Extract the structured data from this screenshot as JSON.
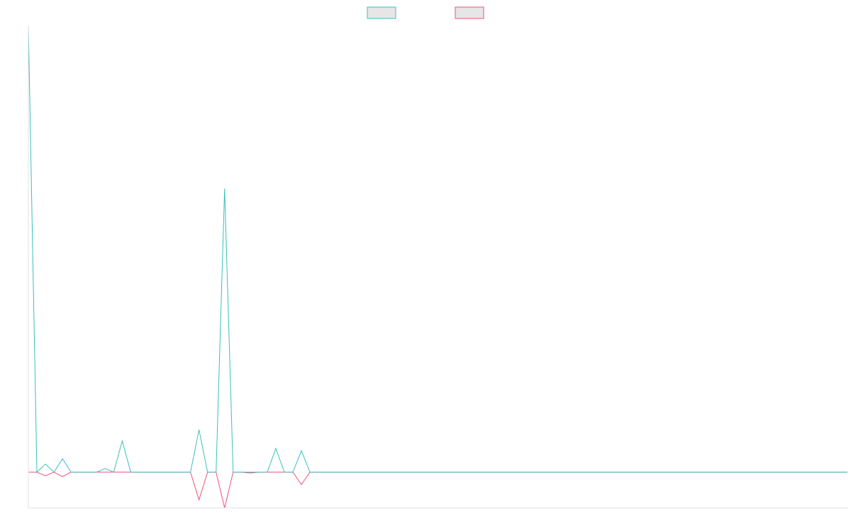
{
  "chart_data": {
    "type": "line",
    "title": "",
    "xlabel": "",
    "ylabel": "",
    "grid": false,
    "legend_position": "top-center",
    "x": [
      0,
      1,
      2,
      3,
      4,
      5,
      6,
      7,
      8,
      9,
      10,
      11,
      12,
      13,
      14,
      15,
      16,
      17,
      18,
      19,
      20,
      21,
      22,
      23,
      24,
      25,
      26,
      27,
      28,
      29,
      30,
      31,
      32,
      33,
      34,
      35,
      36,
      37,
      38,
      39,
      40,
      41,
      42,
      43,
      44,
      45,
      46,
      47,
      48,
      49,
      50,
      51,
      52,
      53,
      54,
      55,
      56,
      57,
      58,
      59,
      60,
      61,
      62,
      63,
      64,
      65,
      66,
      67,
      68,
      69,
      70,
      71,
      72,
      73,
      74,
      75,
      76,
      77,
      78,
      79,
      80,
      81,
      82,
      83,
      84,
      85,
      86,
      87,
      88,
      89,
      90,
      91,
      92,
      93,
      94,
      95,
      96
    ],
    "ylim": [
      -0.08,
      1.0
    ],
    "series": [
      {
        "name": "",
        "color": "#3bbfbf",
        "values": [
          1.0,
          0,
          0.018,
          0,
          0.03,
          0,
          0,
          0,
          0,
          0.008,
          0,
          0.07,
          0,
          0,
          0,
          0,
          0,
          0,
          0,
          0,
          0.095,
          0,
          0,
          0.635,
          0,
          0,
          0,
          0,
          0,
          0.053,
          0,
          0,
          0.048,
          0,
          0,
          0,
          0,
          0,
          0,
          0,
          0,
          0,
          0,
          0,
          0,
          0,
          0,
          0,
          0,
          0,
          0,
          0,
          0,
          0,
          0,
          0,
          0,
          0,
          0,
          0,
          0,
          0,
          0,
          0,
          0,
          0,
          0,
          0,
          0,
          0,
          0,
          0,
          0,
          0,
          0,
          0,
          0,
          0,
          0,
          0,
          0,
          0,
          0,
          0,
          0,
          0,
          0,
          0,
          0,
          0,
          0,
          0,
          0,
          0,
          0,
          0,
          0
        ]
      },
      {
        "name": "",
        "color": "#f0507a",
        "values": [
          0,
          0,
          -0.008,
          0,
          -0.01,
          0,
          0,
          0,
          0,
          0,
          0,
          0,
          0,
          0,
          0,
          0,
          0,
          0,
          0,
          0,
          -0.062,
          0,
          0,
          -0.08,
          0,
          0,
          -0.002,
          0,
          0,
          0,
          0,
          0,
          -0.028,
          0,
          0,
          0,
          0,
          0,
          0,
          0,
          0,
          0,
          0,
          0,
          0,
          0,
          0,
          0,
          0,
          0,
          0,
          0,
          0,
          0,
          0,
          0,
          0,
          0,
          0,
          0,
          0,
          0,
          0,
          0,
          0,
          0,
          0,
          0,
          0,
          0,
          0,
          0,
          0,
          0,
          0,
          0,
          0,
          0,
          0,
          0,
          0,
          0,
          0,
          0,
          0,
          0,
          0,
          0,
          0,
          0,
          0,
          0,
          0,
          0,
          0,
          0,
          0
        ]
      }
    ]
  }
}
